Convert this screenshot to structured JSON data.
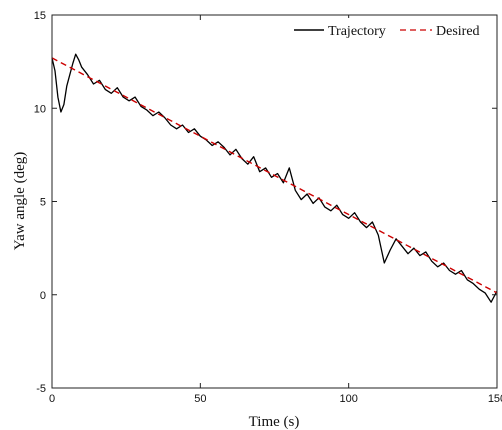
{
  "chart_data": {
    "type": "line",
    "title": "",
    "xlabel": "Time (s)",
    "ylabel": "Yaw angle (deg)",
    "xlim": [
      0,
      150
    ],
    "ylim": [
      -5,
      15
    ],
    "xticks": [
      0,
      50,
      100,
      150
    ],
    "yticks": [
      -5,
      0,
      5,
      10,
      15
    ],
    "grid": false,
    "legend_position": "top-right",
    "series": [
      {
        "name": "Trajectory",
        "color": "#000000",
        "style": "solid",
        "x": [
          0,
          1,
          2,
          3,
          4,
          5,
          6,
          7,
          8,
          9,
          10,
          12,
          14,
          16,
          18,
          20,
          22,
          24,
          26,
          28,
          30,
          32,
          34,
          36,
          38,
          40,
          42,
          44,
          46,
          48,
          50,
          52,
          54,
          56,
          58,
          60,
          62,
          64,
          66,
          68,
          70,
          72,
          74,
          76,
          78,
          80,
          82,
          84,
          86,
          88,
          90,
          92,
          94,
          96,
          98,
          100,
          102,
          104,
          106,
          108,
          110,
          112,
          114,
          116,
          118,
          120,
          122,
          124,
          126,
          128,
          130,
          132,
          134,
          136,
          138,
          140,
          142,
          144,
          146,
          148,
          150
        ],
        "y": [
          12.7,
          12.0,
          10.6,
          9.8,
          10.2,
          11.2,
          11.8,
          12.4,
          12.9,
          12.6,
          12.2,
          11.8,
          11.3,
          11.5,
          11.0,
          10.8,
          11.1,
          10.6,
          10.4,
          10.6,
          10.1,
          9.9,
          9.6,
          9.8,
          9.5,
          9.1,
          8.9,
          9.1,
          8.7,
          8.9,
          8.5,
          8.3,
          8.0,
          8.2,
          7.9,
          7.5,
          7.8,
          7.3,
          7.0,
          7.4,
          6.6,
          6.8,
          6.3,
          6.5,
          6.0,
          6.8,
          5.6,
          5.1,
          5.4,
          4.9,
          5.2,
          4.7,
          4.5,
          4.8,
          4.3,
          4.1,
          4.4,
          3.9,
          3.6,
          3.9,
          3.2,
          1.7,
          2.4,
          3.0,
          2.6,
          2.2,
          2.5,
          2.1,
          2.3,
          1.8,
          1.5,
          1.7,
          1.3,
          1.1,
          1.3,
          0.8,
          0.6,
          0.3,
          0.1,
          -0.4,
          0.2
        ]
      },
      {
        "name": "Desired",
        "color": "#cc0000",
        "style": "dashed",
        "x": [
          0,
          150
        ],
        "y": [
          12.7,
          0.1
        ]
      }
    ]
  }
}
